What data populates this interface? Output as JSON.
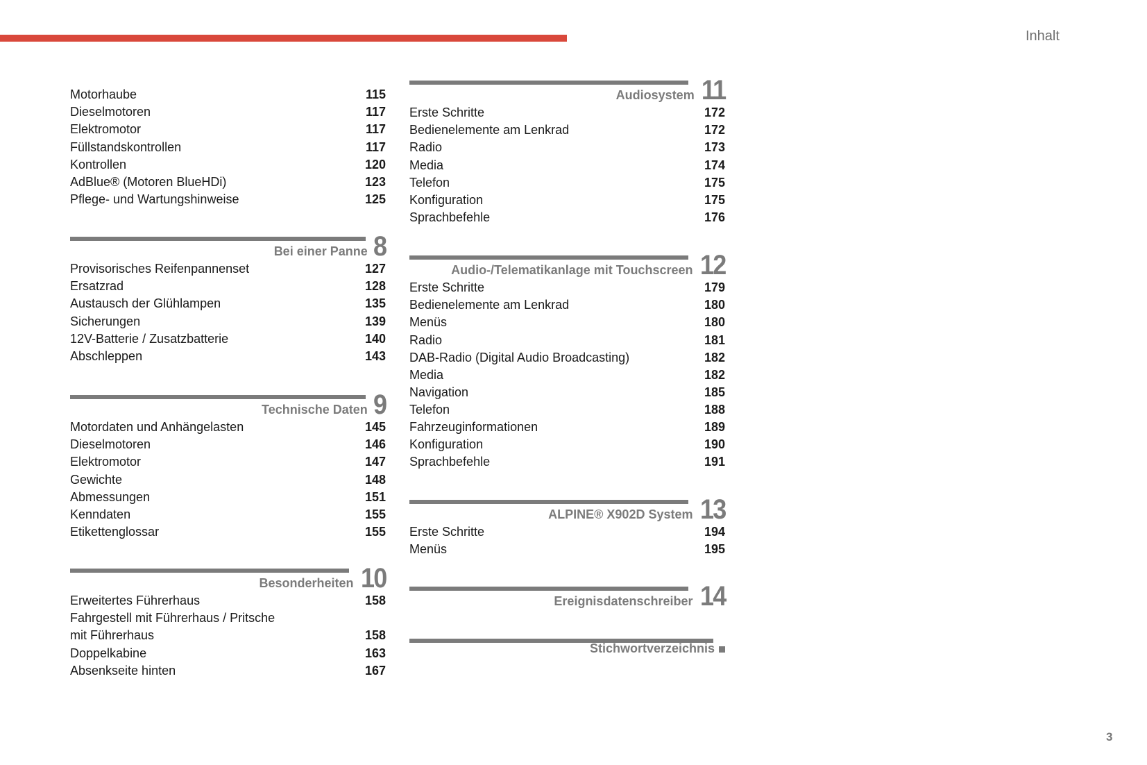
{
  "header": {
    "title": "Inhalt",
    "accent_color": "#d9483b"
  },
  "page_number": "3",
  "left_column": [
    {
      "number": "",
      "title": "",
      "items": [
        {
          "label": "Motorhaube",
          "page": "115"
        },
        {
          "label": "Dieselmotoren",
          "page": "117"
        },
        {
          "label": "Elektromotor",
          "page": "117"
        },
        {
          "label": "Füllstandskontrollen",
          "page": "117"
        },
        {
          "label": "Kontrollen",
          "page": "120"
        },
        {
          "label": "AdBlue® (Motoren BlueHDi)",
          "page": "123"
        },
        {
          "label": "Pflege- und Wartungshinweise",
          "page": "125"
        }
      ]
    },
    {
      "number": "8",
      "title": "Bei einer Panne",
      "items": [
        {
          "label": "Provisorisches Reifenpannenset",
          "page": "127"
        },
        {
          "label": "Ersatzrad",
          "page": "128"
        },
        {
          "label": "Austausch der Glühlampen",
          "page": "135"
        },
        {
          "label": "Sicherungen",
          "page": "139"
        },
        {
          "label": "12V-Batterie / Zusatzbatterie",
          "page": "140"
        },
        {
          "label": "Abschleppen",
          "page": "143"
        }
      ]
    },
    {
      "number": "9",
      "title": "Technische Daten",
      "items": [
        {
          "label": "Motordaten und Anhängelasten",
          "page": "145"
        },
        {
          "label": "Dieselmotoren",
          "page": "146"
        },
        {
          "label": "Elektromotor",
          "page": "147"
        },
        {
          "label": "Gewichte",
          "page": "148"
        },
        {
          "label": "Abmessungen",
          "page": "151"
        },
        {
          "label": "Kenndaten",
          "page": "155"
        },
        {
          "label": "Etikettenglossar",
          "page": "155"
        }
      ]
    },
    {
      "number": "10",
      "title": "Besonderheiten",
      "items": [
        {
          "label": "Erweitertes Führerhaus",
          "page": "158"
        },
        {
          "label": "Fahrgestell mit Führerhaus / Pritsche",
          "page": ""
        },
        {
          "label": "mit Führerhaus",
          "page": "158"
        },
        {
          "label": "Doppelkabine",
          "page": "163"
        },
        {
          "label": "Absenkseite hinten",
          "page": "167"
        }
      ]
    }
  ],
  "right_column": [
    {
      "number": "11",
      "title": "Audiosystem",
      "items": [
        {
          "label": "Erste Schritte",
          "page": "172"
        },
        {
          "label": "Bedienelemente am Lenkrad",
          "page": "172"
        },
        {
          "label": "Radio",
          "page": "173"
        },
        {
          "label": "Media",
          "page": "174"
        },
        {
          "label": "Telefon",
          "page": "175"
        },
        {
          "label": "Konfiguration",
          "page": "175"
        },
        {
          "label": "Sprachbefehle",
          "page": "176"
        }
      ]
    },
    {
      "number": "12",
      "title": "Audio-/Telematikanlage mit Touchscreen",
      "items": [
        {
          "label": "Erste Schritte",
          "page": "179"
        },
        {
          "label": "Bedienelemente am Lenkrad",
          "page": "180"
        },
        {
          "label": "Menüs",
          "page": "180"
        },
        {
          "label": "Radio",
          "page": "181"
        },
        {
          "label": "DAB-Radio (Digital Audio Broadcasting)",
          "page": "182"
        },
        {
          "label": "Media",
          "page": "182"
        },
        {
          "label": "Navigation",
          "page": "185"
        },
        {
          "label": "Telefon",
          "page": "188"
        },
        {
          "label": "Fahrzeuginformationen",
          "page": "189"
        },
        {
          "label": "Konfiguration",
          "page": "190"
        },
        {
          "label": "Sprachbefehle",
          "page": "191"
        }
      ]
    },
    {
      "number": "13",
      "title": "ALPINE® X902D System",
      "items": [
        {
          "label": "Erste Schritte",
          "page": "194"
        },
        {
          "label": "Menüs",
          "page": "195"
        }
      ]
    },
    {
      "number": "14",
      "title": "Ereignisdatenschreiber",
      "items": []
    },
    {
      "number": "",
      "title": "Stichwortverzeichnis",
      "marker": "square-icon",
      "items": []
    }
  ]
}
